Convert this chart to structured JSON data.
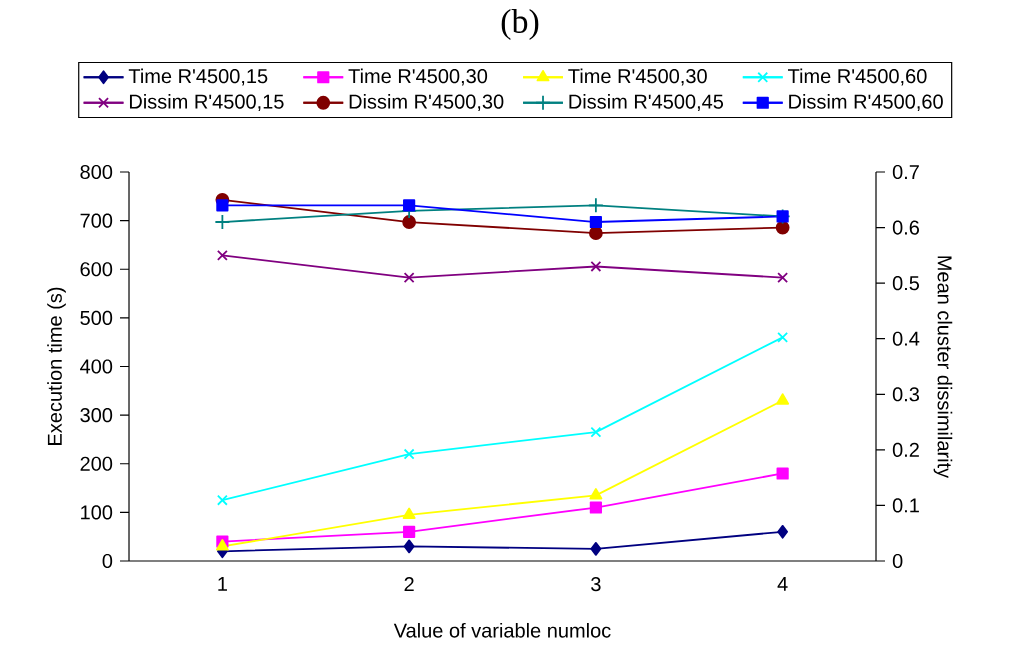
{
  "chart_data": {
    "type": "line",
    "title": "(b)",
    "xlabel": "Value of variable numloc",
    "ylabel": "Execution time (s)",
    "y2label": "Mean cluster dissimilarity",
    "categories": [
      "1",
      "2",
      "3",
      "4"
    ],
    "series": [
      {
        "name": "Time R'4500,15",
        "color": "#000080",
        "marker": "diamond",
        "values": [
          20,
          30,
          25,
          60
        ]
      },
      {
        "name": "Time R'4500,30",
        "color": "#ff00ff",
        "marker": "square",
        "values": [
          40,
          60,
          110,
          180
        ]
      },
      {
        "name": "Time R'4500,30",
        "color": "#ffff00",
        "marker": "triangle",
        "values": [
          30,
          95,
          135,
          330
        ]
      },
      {
        "name": "Time R'4500,60",
        "color": "#00ffff",
        "marker": "cross",
        "values": [
          125,
          220,
          265,
          460
        ]
      },
      {
        "name": "Dissim R'4500,15",
        "color": "#800080",
        "marker": "cross",
        "axis": "y2",
        "values": [
          0.55,
          0.51,
          0.53,
          0.51
        ]
      },
      {
        "name": "Dissim R'4500,30",
        "color": "#800000",
        "marker": "circle",
        "axis": "y2",
        "values": [
          0.65,
          0.61,
          0.59,
          0.6
        ]
      },
      {
        "name": "Dissim R'4500,45",
        "color": "#008080",
        "marker": "plus",
        "axis": "y2",
        "values": [
          0.61,
          0.63,
          0.64,
          0.62
        ]
      },
      {
        "name": "Dissim R'4500,60",
        "color": "#0000ff",
        "marker": "square",
        "axis": "y2",
        "values": [
          0.64,
          0.64,
          0.61,
          0.62
        ]
      }
    ],
    "ylim": [
      0,
      800
    ],
    "yticks": [
      0,
      100,
      200,
      300,
      400,
      500,
      600,
      700,
      800
    ],
    "y2lim": [
      0,
      0.7
    ],
    "y2ticks": [
      0,
      0.1,
      0.2,
      0.3,
      0.4,
      0.5,
      0.6,
      0.7
    ],
    "grid": false,
    "legend": "top",
    "line_style": "solid"
  }
}
